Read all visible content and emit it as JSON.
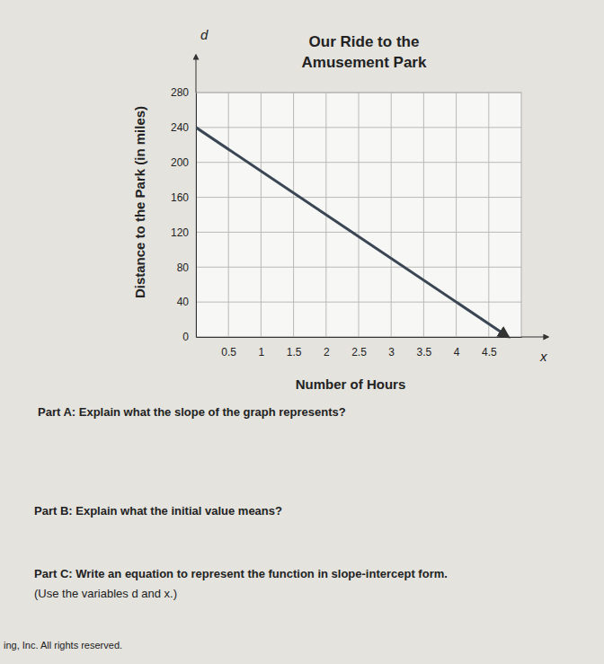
{
  "chart_data": {
    "type": "line",
    "title": [
      "Our Ride to the",
      "Amusement Park"
    ],
    "x_label": "Number of Hours",
    "y_label": "Distance to the Park (in miles)",
    "x_axis_name": "x",
    "y_axis_name": "d",
    "x": [
      0,
      4.8
    ],
    "values": [
      240,
      0
    ],
    "color": "#3b4654",
    "xlim": [
      0,
      5
    ],
    "ylim": [
      0,
      280
    ],
    "xticks": [
      0.5,
      1,
      1.5,
      2,
      2.5,
      3,
      3.5,
      4,
      4.5
    ],
    "yticks": [
      0,
      40,
      80,
      120,
      160,
      200,
      240,
      280
    ],
    "grid": true,
    "annotations": [
      "Part A: Explain what the slope of the graph represents?",
      "Part B: Explain what the initial value means?",
      "Part C: Write an equation to represent the function in slope-intercept form.",
      "(Use the variables d and x.)",
      "ing, Inc. All rights reserved."
    ]
  }
}
